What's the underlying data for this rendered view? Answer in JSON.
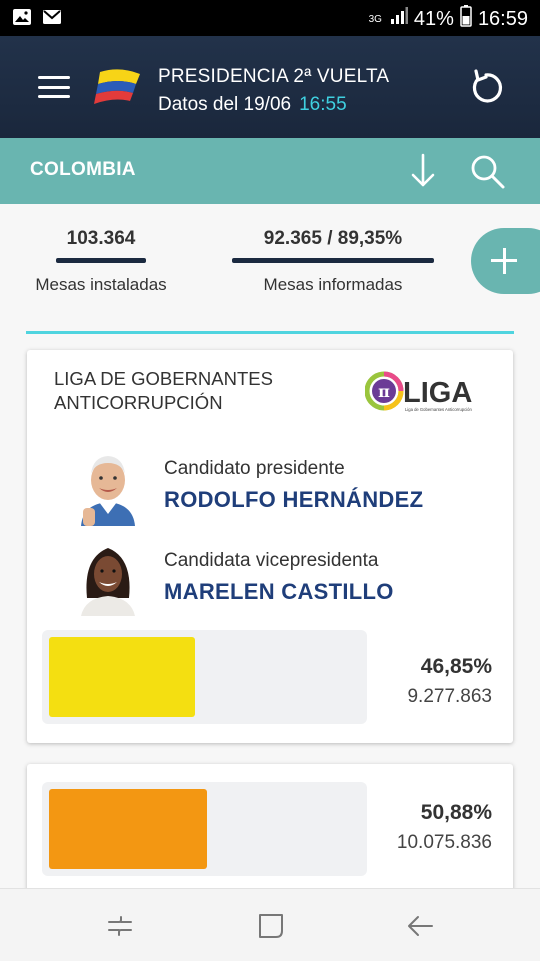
{
  "status_bar": {
    "network": "3G",
    "battery": "41%",
    "time": "16:59"
  },
  "header": {
    "title": "PRESIDENCIA 2ª VUELTA",
    "date_label": "Datos del 19/06",
    "time": "16:55"
  },
  "region_bar": {
    "region": "COLOMBIA"
  },
  "stats": {
    "installed_value": "103.364",
    "installed_label": "Mesas instaladas",
    "reported_value": "92.365 / 89,35%",
    "reported_label": "Mesas informadas"
  },
  "cards": [
    {
      "party": "LIGA DE GOBERNANTES ANTICORRUPCIÓN",
      "party_line1": "LIGA DE GOBERNANTES",
      "party_line2": "ANTICORRUPCIÓN",
      "logo_text": "LIGA",
      "logo_subtext": "Liga de Gobernantes Anticorrupción",
      "president_role": "Candidato presidente",
      "president_name": "RODOLFO HERNÁNDEZ",
      "vice_role": "Candidata vicepresidenta",
      "vice_name": "MARELEN CASTILLO",
      "percent": "46,85%",
      "votes": "9.277.863",
      "share": 0.4685,
      "bar_color": "#f4df11"
    },
    {
      "percent": "50,88%",
      "votes": "10.075.836",
      "share": 0.5088,
      "bar_color": "#f39712"
    }
  ],
  "colors": {
    "header_bg": "#1e2d45",
    "teal": "#69b5b0",
    "accent_time": "#3fd0e0",
    "name_blue": "#1f3e7a"
  },
  "icons": {
    "status_left": [
      "image-icon",
      "mail-icon"
    ],
    "status_right": [
      "signal-icon",
      "battery-icon"
    ],
    "header": [
      "menu-icon",
      "colombia-flag-logo",
      "refresh-icon"
    ],
    "region_bar": [
      "download-arrow-icon",
      "search-icon"
    ],
    "fab": "plus-icon",
    "nav": [
      "recent-apps-icon",
      "home-icon",
      "back-icon"
    ]
  }
}
